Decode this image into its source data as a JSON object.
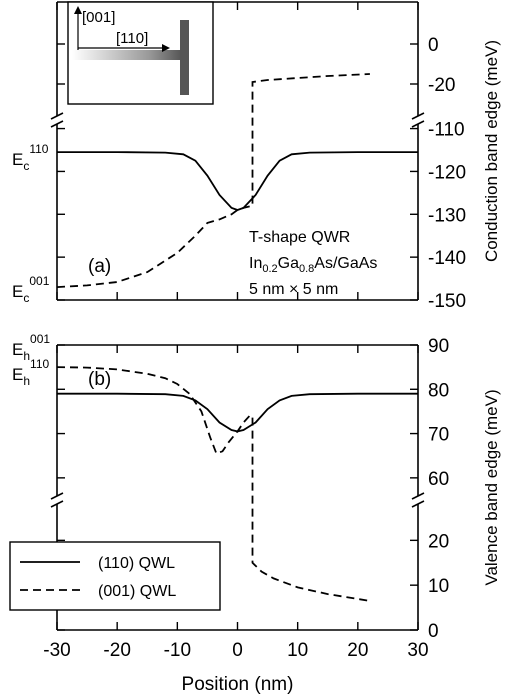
{
  "chart_data": [
    {
      "type": "line",
      "panel_label": "(a)",
      "y_title": "Conduction band edge (meV)",
      "y_segments": [
        {
          "ylim": [
            -38,
            21
          ],
          "yticks": [
            0,
            -20
          ]
        },
        {
          "ylim": [
            -150,
            -108
          ],
          "yticks": [
            -110,
            -120,
            -130,
            -140,
            -150
          ]
        }
      ],
      "xlim": [
        -30,
        30
      ],
      "xticks": [
        -30,
        -20,
        -10,
        0,
        10,
        20,
        30
      ],
      "left_labels": [
        {
          "base": "E",
          "sub": "c",
          "sup": "110"
        },
        {
          "base": "E",
          "sub": "c",
          "sup": "001"
        }
      ],
      "annotations": [
        [
          {
            "text": "T-shape QWR"
          }
        ],
        [
          {
            "text": "In"
          },
          {
            "sub": "0.2"
          },
          {
            "text": "Ga"
          },
          {
            "sub": "0.8"
          },
          {
            "text": "As/GaAs"
          }
        ],
        [
          {
            "text": "5 nm × 5 nm"
          }
        ]
      ],
      "inset_labels": [
        "[001]",
        "[110]"
      ],
      "series": [
        {
          "style": "solid",
          "color": "#000000",
          "x": [
            -30,
            -20,
            -12,
            -9,
            -7,
            -5,
            -3,
            -1,
            0,
            1,
            3,
            5,
            7,
            9,
            12,
            20,
            30
          ],
          "values": [
            -115.5,
            -115.5,
            -115.6,
            -116,
            -117.5,
            -121,
            -125.5,
            -128.5,
            -129,
            -128.5,
            -125.5,
            -121,
            -117.5,
            -116,
            -115.6,
            -115.5,
            -115.5
          ]
        },
        {
          "style": "dashed",
          "color": "#000000",
          "x": [
            -30,
            -25,
            -20,
            -15,
            -10,
            -7,
            -5,
            -3,
            -1,
            0,
            1,
            2.5,
            2.5,
            5,
            10,
            15,
            22
          ],
          "values": [
            -147,
            -146.6,
            -145.8,
            -143.5,
            -139,
            -135,
            -132,
            -131.2,
            -130,
            -129,
            -128.5,
            -128,
            -19,
            -18,
            -17,
            -16,
            -15
          ]
        }
      ]
    },
    {
      "type": "line",
      "panel_label": "(b)",
      "y_title": "Valence band edge (meV)",
      "x_title": "Position (nm)",
      "y_segments": [
        {
          "ylim": [
            55,
            90
          ],
          "yticks": [
            90,
            80,
            70,
            60
          ]
        },
        {
          "ylim": [
            0,
            29
          ],
          "yticks": [
            20,
            10,
            0
          ]
        }
      ],
      "xlim": [
        -30,
        30
      ],
      "xticks": [
        -30,
        -20,
        -10,
        0,
        10,
        20,
        30
      ],
      "left_labels": [
        {
          "base": "E",
          "sub": "h",
          "sup": "001"
        },
        {
          "base": "E",
          "sub": "h",
          "sup": "110"
        }
      ],
      "series": [
        {
          "name": "(110) QWL",
          "style": "solid",
          "color": "#000000",
          "x": [
            -30,
            -20,
            -12,
            -9,
            -7,
            -5,
            -3,
            -1,
            0,
            1,
            3,
            5,
            7,
            9,
            12,
            20,
            30
          ],
          "values": [
            79,
            79,
            78.9,
            78.5,
            77.5,
            75.5,
            72.5,
            70.8,
            70.5,
            70.8,
            72.5,
            75.5,
            77.5,
            78.5,
            78.9,
            79,
            79
          ]
        },
        {
          "name": "(001) QWL",
          "style": "dashed",
          "color": "#000000",
          "x": [
            -30,
            -25,
            -20,
            -15,
            -12,
            -10,
            -8,
            -6,
            -4.5,
            -3.5,
            -2.5,
            -1.5,
            0,
            1,
            2,
            2.5,
            2.5,
            4,
            6,
            10,
            15,
            22
          ],
          "values": [
            85,
            84.9,
            84.5,
            83.5,
            82.5,
            81.2,
            79,
            75,
            69,
            65.5,
            66,
            68,
            70.5,
            72.5,
            74,
            74,
            15,
            13,
            11.5,
            9.5,
            8,
            6.5
          ]
        }
      ]
    }
  ]
}
